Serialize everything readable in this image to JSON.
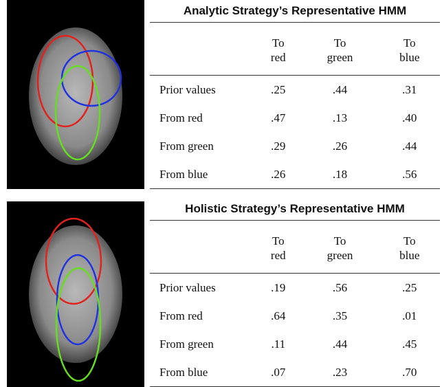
{
  "panels": [
    {
      "title": "Analytic Strategy’s Representative HMM",
      "header": [
        "To\nred",
        "To\ngreen",
        "To\nblue"
      ],
      "rows": [
        {
          "label": "Prior values",
          "cells": [
            ".25",
            ".44",
            ".31"
          ]
        },
        {
          "label": "From red",
          "cells": [
            ".47",
            ".13",
            ".40"
          ]
        },
        {
          "label": "From green",
          "cells": [
            ".29",
            ".26",
            ".44"
          ]
        },
        {
          "label": "From blue",
          "cells": [
            ".26",
            ".18",
            ".56"
          ]
        }
      ]
    },
    {
      "title": "Holistic Strategy’s Representative HMM",
      "header": [
        "To\nred",
        "To\ngreen",
        "To\nblue"
      ],
      "rows": [
        {
          "label": "Prior values",
          "cells": [
            ".19",
            ".56",
            ".25"
          ]
        },
        {
          "label": "From red",
          "cells": [
            ".64",
            ".35",
            ".01"
          ]
        },
        {
          "label": "From green",
          "cells": [
            ".11",
            ".44",
            ".45"
          ]
        },
        {
          "label": "From blue",
          "cells": [
            ".07",
            ".23",
            ".70"
          ]
        }
      ]
    }
  ]
}
